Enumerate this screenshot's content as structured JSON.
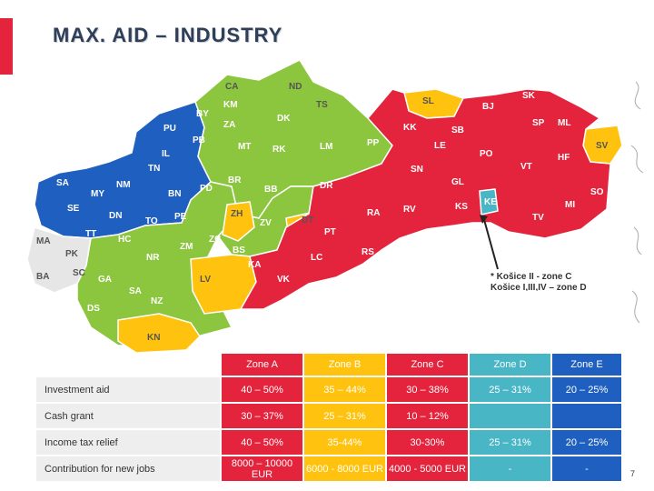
{
  "title": "MAX. AID – INDUSTRY",
  "colors": {
    "zone_a": "#e4233c",
    "zone_b": "#ffc20e",
    "zone_c": "#e4233c",
    "zone_d": "#49b6c6",
    "zone_e": "#1f5fbf",
    "green": "#8cc63f",
    "excluded": "#e6e6e6",
    "accent": "#e4233c",
    "title": "#2f3f5a"
  },
  "map_labels": {
    "ca": "CA",
    "nd": "ND",
    "km": "KM",
    "by": "BY",
    "ts": "TS",
    "pu": "PU",
    "za": "ZA",
    "dk": "DK",
    "pb": "PB",
    "mt": "MT",
    "rk": "RK",
    "lm": "LM",
    "pp": "PP",
    "il": "IL",
    "tn": "TN",
    "nm": "NM",
    "sa": "SA",
    "my": "MY",
    "br": "BR",
    "pd": "PD",
    "bb": "BB",
    "bn": "BN",
    "se": "SE",
    "dn": "DN",
    "to": "TO",
    "pe": "PE",
    "zh": "ZH",
    "zv": "ZV",
    "dt": "DT",
    "ma": "MA",
    "tt": "TT",
    "hc": "HC",
    "zc": "ZC",
    "zm": "ZM",
    "bs": "BS",
    "pt": "PT",
    "pk": "PK",
    "nr": "NR",
    "ka": "KA",
    "lc": "LC",
    "ba": "BA",
    "sc": "SC",
    "ga": "GA",
    "lv": "LV",
    "vk": "VK",
    "rs": "RS",
    "sa2": "SA",
    "nz": "NZ",
    "ds": "DS",
    "kn": "KN",
    "sl": "SL",
    "sk": "SK",
    "bj": "BJ",
    "kk": "KK",
    "sb": "SB",
    "sp": "SP",
    "ml": "ML",
    "le": "LE",
    "po": "PO",
    "sv": "SV",
    "hf": "HF",
    "sn": "SN",
    "vt": "VT",
    "gl": "GL",
    "dr": "DR",
    "ke": "KE",
    "ks": "KS",
    "so": "SO",
    "mi": "MI",
    "ra": "RA",
    "rv": "RV",
    "tv": "TV"
  },
  "kosice_note": {
    "line1": "* Košice II - zone C",
    "line2": "Košice I,III,IV – zone D"
  },
  "table": {
    "headers": [
      "Zone A",
      "Zone B",
      "Zone C",
      "Zone D",
      "Zone E"
    ],
    "rows": [
      {
        "label": "Investment aid",
        "cells": [
          "40 – 50%",
          "35 – 44%",
          "30 – 38%",
          "25 – 31%",
          "20 – 25%"
        ]
      },
      {
        "label": "Cash grant",
        "cells": [
          "30 – 37%",
          "25 – 31%",
          "10 – 12%",
          "",
          ""
        ]
      },
      {
        "label": "Income tax relief",
        "cells": [
          "40 – 50%",
          "35-44%",
          "30-30%",
          "25 – 31%",
          "20 – 25%"
        ]
      },
      {
        "label": "Contribution for new jobs",
        "cells": [
          "8000 – 10000 EUR",
          "6000 - 8000 EUR",
          "4000 - 5000 EUR",
          "-",
          "-"
        ]
      }
    ]
  },
  "slide_number": "7"
}
